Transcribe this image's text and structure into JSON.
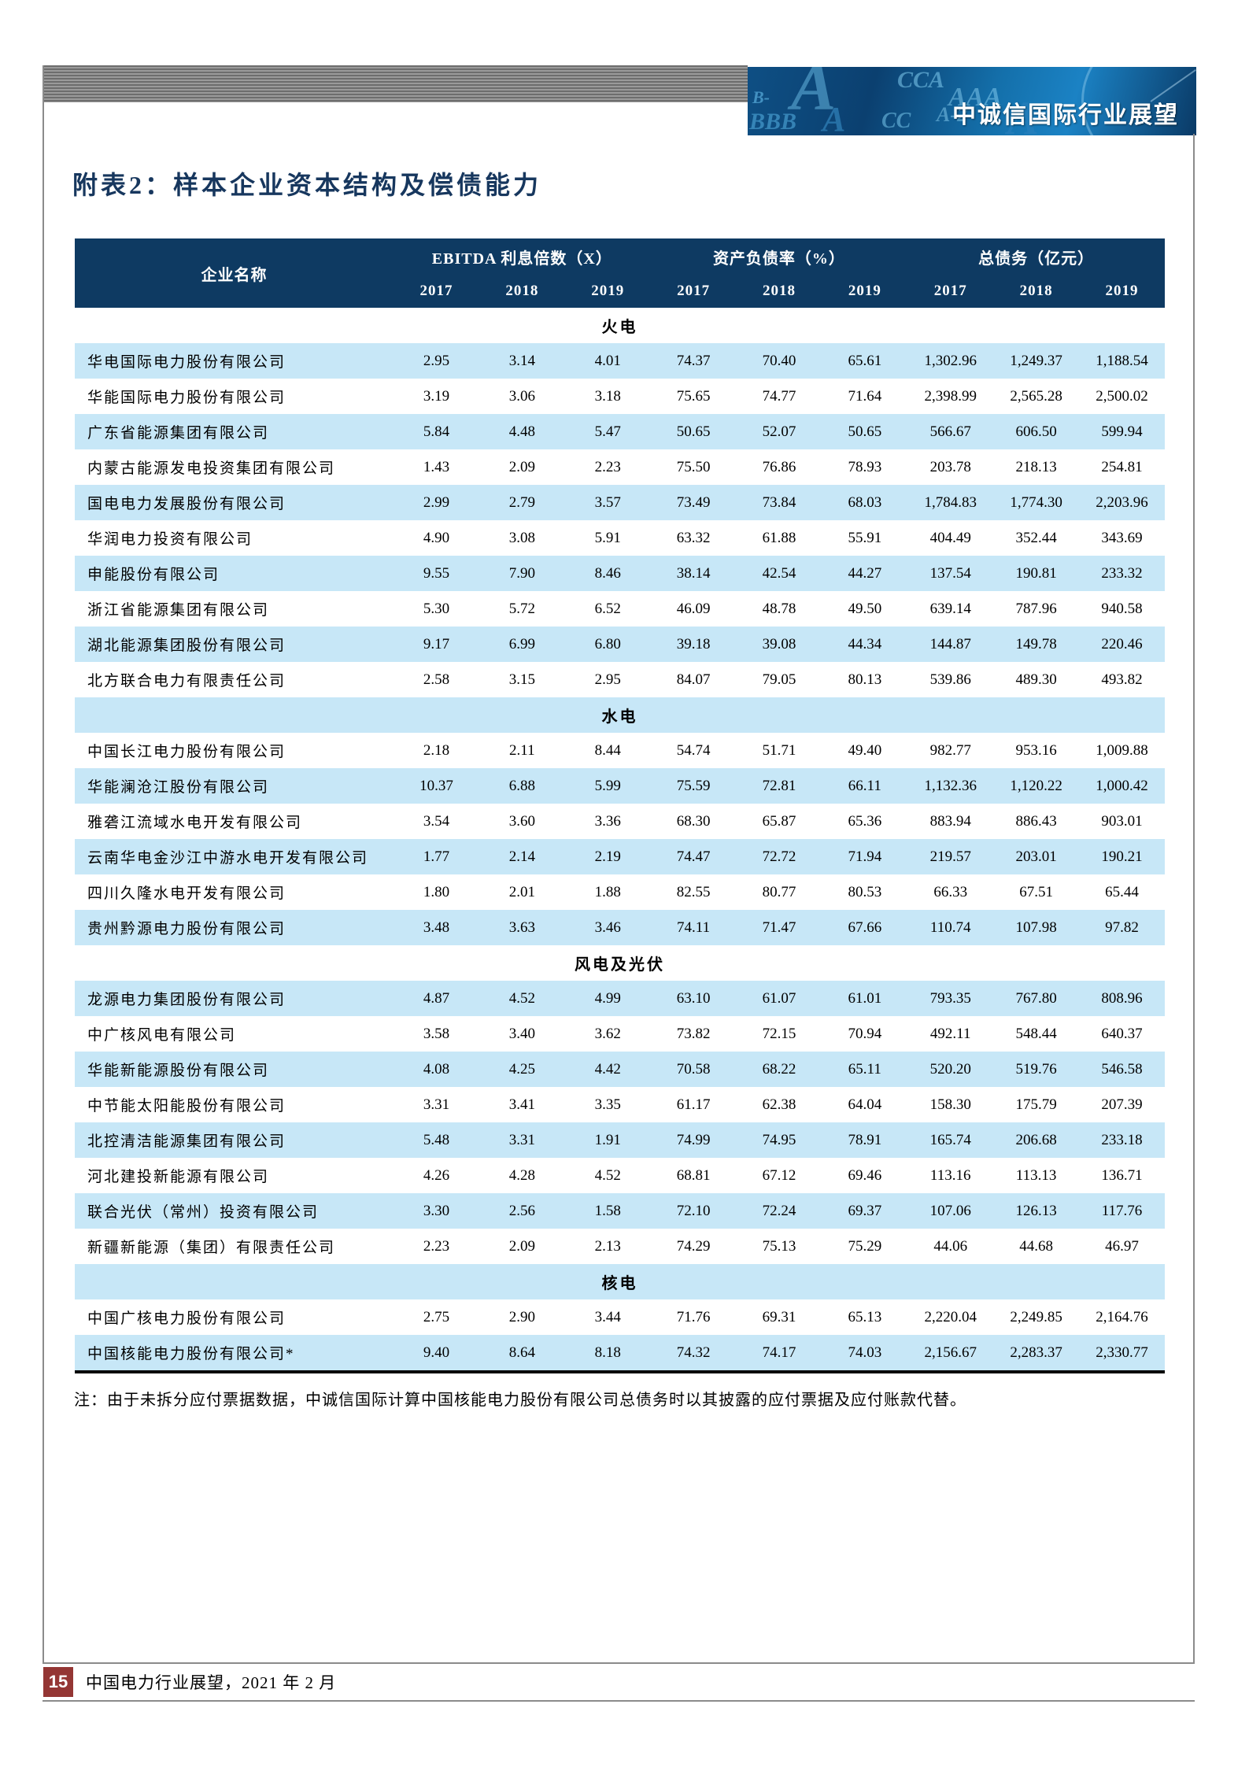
{
  "banner": {
    "title": "中诚信国际行业展望",
    "watermark_letters": [
      "B-",
      "A",
      "CCA",
      "AAA",
      "BBB",
      "A",
      "CC",
      "A-2",
      "CC+",
      "A"
    ]
  },
  "page_title": "附表2：样本企业资本结构及偿债能力",
  "table": {
    "name_header": "企业名称",
    "col_groups": [
      {
        "label": "EBITDA 利息倍数（X）",
        "years": [
          "2017",
          "2018",
          "2019"
        ]
      },
      {
        "label": "资产负债率（%）",
        "years": [
          "2017",
          "2018",
          "2019"
        ]
      },
      {
        "label": "总债务（亿元）",
        "years": [
          "2017",
          "2018",
          "2019"
        ]
      }
    ],
    "sections": [
      {
        "name": "火电",
        "rows": [
          {
            "company": "华电国际电力股份有限公司",
            "values": [
              "2.95",
              "3.14",
              "4.01",
              "74.37",
              "70.40",
              "65.61",
              "1,302.96",
              "1,249.37",
              "1,188.54"
            ]
          },
          {
            "company": "华能国际电力股份有限公司",
            "values": [
              "3.19",
              "3.06",
              "3.18",
              "75.65",
              "74.77",
              "71.64",
              "2,398.99",
              "2,565.28",
              "2,500.02"
            ]
          },
          {
            "company": "广东省能源集团有限公司",
            "values": [
              "5.84",
              "4.48",
              "5.47",
              "50.65",
              "52.07",
              "50.65",
              "566.67",
              "606.50",
              "599.94"
            ]
          },
          {
            "company": "内蒙古能源发电投资集团有限公司",
            "values": [
              "1.43",
              "2.09",
              "2.23",
              "75.50",
              "76.86",
              "78.93",
              "203.78",
              "218.13",
              "254.81"
            ]
          },
          {
            "company": "国电电力发展股份有限公司",
            "values": [
              "2.99",
              "2.79",
              "3.57",
              "73.49",
              "73.84",
              "68.03",
              "1,784.83",
              "1,774.30",
              "2,203.96"
            ]
          },
          {
            "company": "华润电力投资有限公司",
            "values": [
              "4.90",
              "3.08",
              "5.91",
              "63.32",
              "61.88",
              "55.91",
              "404.49",
              "352.44",
              "343.69"
            ]
          },
          {
            "company": "申能股份有限公司",
            "values": [
              "9.55",
              "7.90",
              "8.46",
              "38.14",
              "42.54",
              "44.27",
              "137.54",
              "190.81",
              "233.32"
            ]
          },
          {
            "company": "浙江省能源集团有限公司",
            "values": [
              "5.30",
              "5.72",
              "6.52",
              "46.09",
              "48.78",
              "49.50",
              "639.14",
              "787.96",
              "940.58"
            ]
          },
          {
            "company": "湖北能源集团股份有限公司",
            "values": [
              "9.17",
              "6.99",
              "6.80",
              "39.18",
              "39.08",
              "44.34",
              "144.87",
              "149.78",
              "220.46"
            ]
          },
          {
            "company": "北方联合电力有限责任公司",
            "values": [
              "2.58",
              "3.15",
              "2.95",
              "84.07",
              "79.05",
              "80.13",
              "539.86",
              "489.30",
              "493.82"
            ]
          }
        ]
      },
      {
        "name": "水电",
        "rows": [
          {
            "company": "中国长江电力股份有限公司",
            "values": [
              "2.18",
              "2.11",
              "8.44",
              "54.74",
              "51.71",
              "49.40",
              "982.77",
              "953.16",
              "1,009.88"
            ]
          },
          {
            "company": "华能澜沧江股份有限公司",
            "values": [
              "10.37",
              "6.88",
              "5.99",
              "75.59",
              "72.81",
              "66.11",
              "1,132.36",
              "1,120.22",
              "1,000.42"
            ]
          },
          {
            "company": "雅砻江流域水电开发有限公司",
            "values": [
              "3.54",
              "3.60",
              "3.36",
              "68.30",
              "65.87",
              "65.36",
              "883.94",
              "886.43",
              "903.01"
            ]
          },
          {
            "company": "云南华电金沙江中游水电开发有限公司",
            "values": [
              "1.77",
              "2.14",
              "2.19",
              "74.47",
              "72.72",
              "71.94",
              "219.57",
              "203.01",
              "190.21"
            ]
          },
          {
            "company": "四川久隆水电开发有限公司",
            "values": [
              "1.80",
              "2.01",
              "1.88",
              "82.55",
              "80.77",
              "80.53",
              "66.33",
              "67.51",
              "65.44"
            ]
          },
          {
            "company": "贵州黔源电力股份有限公司",
            "values": [
              "3.48",
              "3.63",
              "3.46",
              "74.11",
              "71.47",
              "67.66",
              "110.74",
              "107.98",
              "97.82"
            ]
          }
        ]
      },
      {
        "name": "风电及光伏",
        "rows": [
          {
            "company": "龙源电力集团股份有限公司",
            "values": [
              "4.87",
              "4.52",
              "4.99",
              "63.10",
              "61.07",
              "61.01",
              "793.35",
              "767.80",
              "808.96"
            ]
          },
          {
            "company": "中广核风电有限公司",
            "values": [
              "3.58",
              "3.40",
              "3.62",
              "73.82",
              "72.15",
              "70.94",
              "492.11",
              "548.44",
              "640.37"
            ]
          },
          {
            "company": "华能新能源股份有限公司",
            "values": [
              "4.08",
              "4.25",
              "4.42",
              "70.58",
              "68.22",
              "65.11",
              "520.20",
              "519.76",
              "546.58"
            ]
          },
          {
            "company": "中节能太阳能股份有限公司",
            "values": [
              "3.31",
              "3.41",
              "3.35",
              "61.17",
              "62.38",
              "64.04",
              "158.30",
              "175.79",
              "207.39"
            ]
          },
          {
            "company": "北控清洁能源集团有限公司",
            "values": [
              "5.48",
              "3.31",
              "1.91",
              "74.99",
              "74.95",
              "78.91",
              "165.74",
              "206.68",
              "233.18"
            ]
          },
          {
            "company": "河北建投新能源有限公司",
            "values": [
              "4.26",
              "4.28",
              "4.52",
              "68.81",
              "67.12",
              "69.46",
              "113.16",
              "113.13",
              "136.71"
            ]
          },
          {
            "company": "联合光伏（常州）投资有限公司",
            "values": [
              "3.30",
              "2.56",
              "1.58",
              "72.10",
              "72.24",
              "69.37",
              "107.06",
              "126.13",
              "117.76"
            ]
          },
          {
            "company": "新疆新能源（集团）有限责任公司",
            "values": [
              "2.23",
              "2.09",
              "2.13",
              "74.29",
              "75.13",
              "75.29",
              "44.06",
              "44.68",
              "46.97"
            ]
          }
        ]
      },
      {
        "name": "核电",
        "rows": [
          {
            "company": "中国广核电力股份有限公司",
            "values": [
              "2.75",
              "2.90",
              "3.44",
              "71.76",
              "69.31",
              "65.13",
              "2,220.04",
              "2,249.85",
              "2,164.76"
            ]
          },
          {
            "company": "中国核能电力股份有限公司*",
            "values": [
              "9.40",
              "8.64",
              "8.18",
              "74.32",
              "74.17",
              "74.03",
              "2,156.67",
              "2,283.37",
              "2,330.77"
            ]
          }
        ]
      }
    ]
  },
  "note": "注：由于未拆分应付票据数据，中诚信国际计算中国核能电力股份有限公司总债务时以其披露的应付票据及应付账款代替。",
  "footer": {
    "page_number": "15",
    "text": "中国电力行业展望，2021 年 2 月"
  },
  "colors": {
    "header_navy": "#0e3a62",
    "row_light_blue": "#c7e7f7",
    "title_navy": "#17375e",
    "page_number_maroon": "#943634",
    "frame_gray": "#8b8b8b"
  }
}
